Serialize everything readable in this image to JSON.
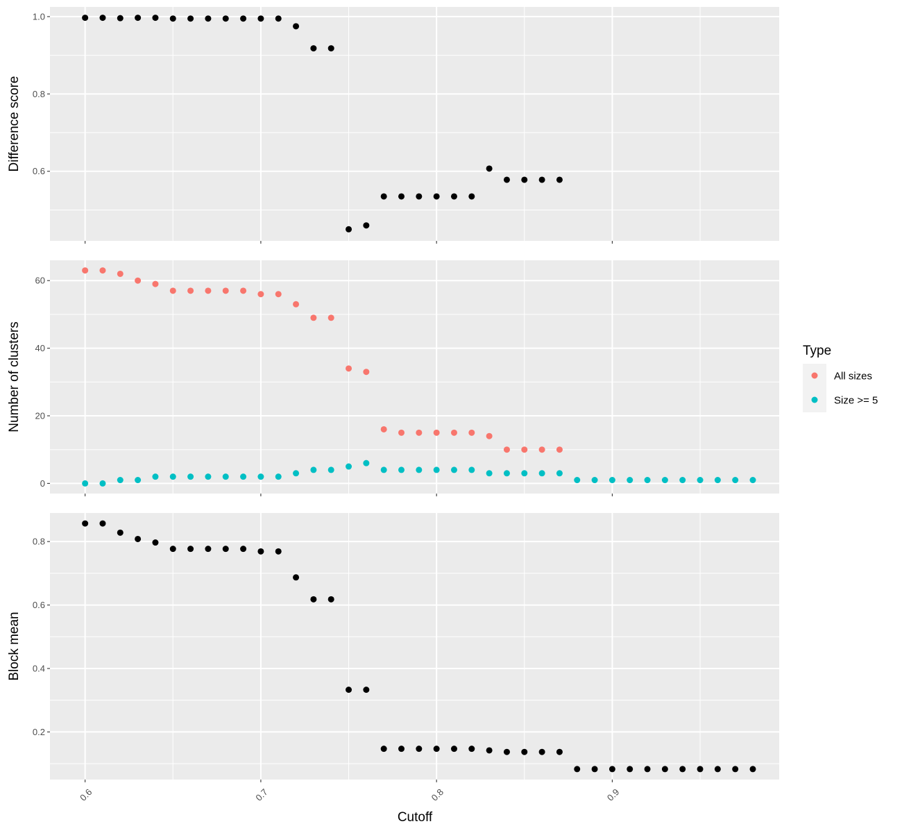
{
  "chart_data": {
    "type": "scatter",
    "x_axis": {
      "label": "Cutoff",
      "range": [
        0.58,
        0.995
      ],
      "ticks": [
        0.6,
        0.7,
        0.8,
        0.9
      ],
      "tick_labels": [
        "0.6",
        "0.7",
        "0.8",
        "0.9"
      ],
      "minor_gridlines": [
        0.65,
        0.75,
        0.85,
        0.95
      ]
    },
    "grid": true,
    "legend": {
      "title": "Type",
      "placement": "right",
      "entries": [
        {
          "label": "All sizes",
          "color": "#F8766D"
        },
        {
          "label": "Size >= 5",
          "color": "#00BFC4"
        }
      ]
    },
    "panels": [
      {
        "ylabel": "Difference score",
        "ylim": [
          0.42,
          1.025
        ],
        "y_ticks": [
          0.6,
          0.8,
          1.0
        ],
        "y_tick_labels": [
          "0.6",
          "0.8",
          "1.0"
        ],
        "y_minor": [
          0.5,
          0.7,
          0.9
        ],
        "series": [
          {
            "color": "#000000",
            "x": [
              0.6,
              0.61,
              0.62,
              0.63,
              0.64,
              0.65,
              0.66,
              0.67,
              0.68,
              0.69,
              0.7,
              0.71,
              0.72,
              0.73,
              0.74,
              0.75,
              0.76,
              0.77,
              0.78,
              0.79,
              0.8,
              0.81,
              0.82,
              0.83,
              0.84,
              0.85,
              0.86,
              0.87
            ],
            "y": [
              0.997,
              0.997,
              0.996,
              0.997,
              0.997,
              0.995,
              0.995,
              0.995,
              0.995,
              0.995,
              0.995,
              0.995,
              0.975,
              0.918,
              0.918,
              0.45,
              0.46,
              0.535,
              0.535,
              0.535,
              0.535,
              0.535,
              0.535,
              0.607,
              0.578,
              0.578,
              0.578,
              0.578
            ]
          }
        ]
      },
      {
        "ylabel": "Number of clusters",
        "ylim": [
          -3,
          66
        ],
        "y_ticks": [
          0,
          20,
          40,
          60
        ],
        "y_tick_labels": [
          "0",
          "20",
          "40",
          "60"
        ],
        "y_minor": [
          10,
          30,
          50
        ],
        "series": [
          {
            "name": "All sizes",
            "color": "#F8766D",
            "x": [
              0.6,
              0.61,
              0.62,
              0.63,
              0.64,
              0.65,
              0.66,
              0.67,
              0.68,
              0.69,
              0.7,
              0.71,
              0.72,
              0.73,
              0.74,
              0.75,
              0.76,
              0.77,
              0.78,
              0.79,
              0.8,
              0.81,
              0.82,
              0.83,
              0.84,
              0.85,
              0.86,
              0.87
            ],
            "y": [
              63,
              63,
              62,
              60,
              59,
              57,
              57,
              57,
              57,
              57,
              56,
              56,
              53,
              49,
              49,
              34,
              33,
              16,
              15,
              15,
              15,
              15,
              15,
              14,
              10,
              10,
              10,
              10
            ]
          },
          {
            "name": "Size >= 5",
            "color": "#00BFC4",
            "x": [
              0.6,
              0.61,
              0.62,
              0.63,
              0.64,
              0.65,
              0.66,
              0.67,
              0.68,
              0.69,
              0.7,
              0.71,
              0.72,
              0.73,
              0.74,
              0.75,
              0.76,
              0.77,
              0.78,
              0.79,
              0.8,
              0.81,
              0.82,
              0.83,
              0.84,
              0.85,
              0.86,
              0.87,
              0.88,
              0.89,
              0.9,
              0.91,
              0.92,
              0.93,
              0.94,
              0.95,
              0.96,
              0.97,
              0.98
            ],
            "y": [
              0,
              0,
              1,
              1,
              2,
              2,
              2,
              2,
              2,
              2,
              2,
              2,
              3,
              4,
              4,
              5,
              6,
              4,
              4,
              4,
              4,
              4,
              4,
              3,
              3,
              3,
              3,
              3,
              1,
              1,
              1,
              1,
              1,
              1,
              1,
              1,
              1,
              1,
              1
            ]
          }
        ]
      },
      {
        "ylabel": "Block mean",
        "ylim": [
          0.05,
          0.89
        ],
        "y_ticks": [
          0.2,
          0.4,
          0.6,
          0.8
        ],
        "y_tick_labels": [
          "0.2",
          "0.4",
          "0.6",
          "0.8"
        ],
        "y_minor": [
          0.1,
          0.3,
          0.5,
          0.7
        ],
        "series": [
          {
            "color": "#000000",
            "x": [
              0.6,
              0.61,
              0.62,
              0.63,
              0.64,
              0.65,
              0.66,
              0.67,
              0.68,
              0.69,
              0.7,
              0.71,
              0.72,
              0.73,
              0.74,
              0.75,
              0.76,
              0.77,
              0.78,
              0.79,
              0.8,
              0.81,
              0.82,
              0.83,
              0.84,
              0.85,
              0.86,
              0.87,
              0.88,
              0.89,
              0.9,
              0.91,
              0.92,
              0.93,
              0.94,
              0.95,
              0.96,
              0.97,
              0.98
            ],
            "y": [
              0.857,
              0.857,
              0.828,
              0.808,
              0.797,
              0.777,
              0.777,
              0.777,
              0.777,
              0.777,
              0.769,
              0.769,
              0.687,
              0.618,
              0.618,
              0.333,
              0.333,
              0.147,
              0.147,
              0.147,
              0.147,
              0.147,
              0.147,
              0.142,
              0.137,
              0.137,
              0.137,
              0.137,
              0.083,
              0.083,
              0.083,
              0.083,
              0.083,
              0.083,
              0.083,
              0.083,
              0.083,
              0.083,
              0.083
            ]
          }
        ]
      }
    ]
  }
}
